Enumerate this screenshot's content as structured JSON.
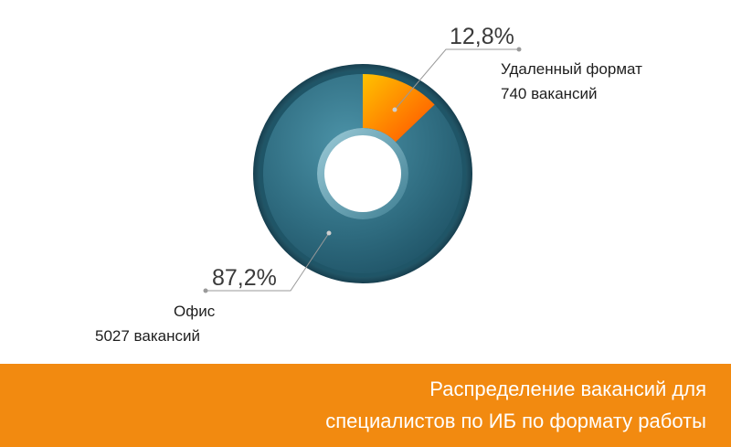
{
  "chart_data": {
    "type": "pie",
    "variant": "donut",
    "slices": [
      {
        "label": "Удаленный формат",
        "count_text": "740 вакансий",
        "value": 740,
        "percent_text": "12,8%",
        "percent": 12.8,
        "color": "#f5a10a"
      },
      {
        "label": "Офис",
        "count_text": "5027 вакансий",
        "value": 5027,
        "percent_text": "87,2%",
        "percent": 87.2,
        "color": "#2f6c80"
      }
    ],
    "title_lines": [
      "Распределение вакансий для",
      "специалистов по ИБ по формату работы"
    ]
  },
  "colors": {
    "accent": "#f28a10",
    "remote_gradient": [
      "#ffc200",
      "#ff5a00"
    ],
    "office": "#2f6c80",
    "office_dark": "#1b4b5e",
    "text": "#3a3a3a"
  }
}
